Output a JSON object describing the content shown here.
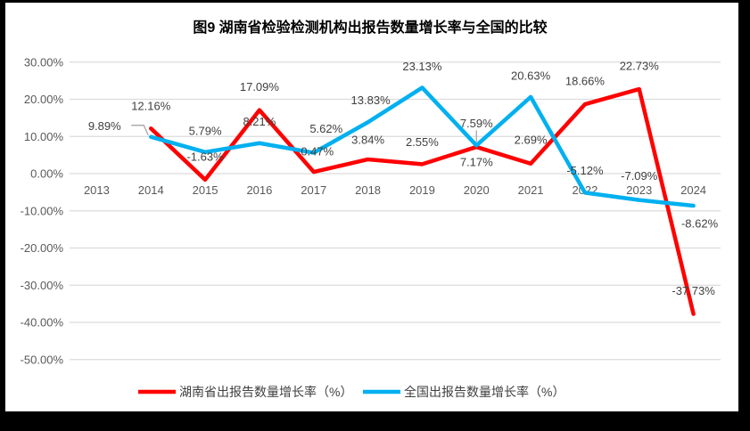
{
  "title": "图9 湖南省检验检测机构出报告数量增长率与全国的比较",
  "frame": {
    "background": "#000000",
    "canvas": "#ffffff"
  },
  "chart_data": {
    "type": "line",
    "categories": [
      "2013",
      "2014",
      "2015",
      "2016",
      "2017",
      "2018",
      "2019",
      "2020",
      "2021",
      "2022",
      "2023",
      "2024"
    ],
    "series": [
      {
        "name": "湖南省出报告数量增长率（%）",
        "color": "#FF0000",
        "values": [
          null,
          12.16,
          -1.63,
          17.09,
          0.47,
          3.84,
          2.55,
          7.17,
          2.69,
          18.66,
          22.73,
          -37.73
        ],
        "labels": [
          "",
          "12.16%",
          "-1.63%",
          "17.09%",
          "0.47%",
          "3.84%",
          "2.55%",
          "7.17%",
          "2.69%",
          "18.66%",
          "22.73%",
          "-37.73%"
        ],
        "label_offsets": [
          null,
          [
            0,
            -25
          ],
          [
            0,
            -26
          ],
          [
            0,
            -26
          ],
          [
            4,
            -23
          ],
          [
            0,
            -22
          ],
          [
            0,
            -25
          ],
          [
            0,
            17
          ],
          [
            0,
            -27
          ],
          [
            0,
            -26
          ],
          [
            0,
            -26
          ],
          [
            0,
            -26
          ]
        ],
        "leaders": {}
      },
      {
        "name": "全国出报告数量增长率（%）",
        "color": "#00B0F0",
        "values": [
          null,
          9.89,
          5.79,
          8.21,
          5.62,
          13.83,
          23.13,
          7.59,
          20.63,
          -5.12,
          -7.09,
          -8.62
        ],
        "labels": [
          "",
          "9.89%",
          "5.79%",
          "8.21%",
          "5.62%",
          "13.83%",
          "23.13%",
          "7.59%",
          "20.63%",
          "-5.12%",
          "-7.09%",
          "-8.62%"
        ],
        "label_offsets": [
          null,
          [
            -52,
            -12
          ],
          [
            0,
            -24
          ],
          [
            0,
            -24
          ],
          [
            14,
            -27
          ],
          [
            3,
            -25
          ],
          [
            0,
            -24
          ],
          [
            0,
            -25
          ],
          [
            0,
            -24
          ],
          [
            0,
            -25
          ],
          [
            0,
            -27
          ],
          [
            7,
            20
          ]
        ],
        "leaders": {
          "1": "left",
          "7": "down"
        }
      }
    ],
    "y_ticks": [
      "30.00%",
      "20.00%",
      "10.00%",
      "0.00%",
      "-10.00%",
      "-20.00%",
      "-30.00%",
      "-40.00%",
      "-50.00%"
    ],
    "ylim": [
      -50,
      30
    ],
    "y_step": 10,
    "grid": true,
    "gridline_color": "#DCDCDC",
    "leader_color": "#A6A6A6",
    "legend_position": "bottom"
  }
}
